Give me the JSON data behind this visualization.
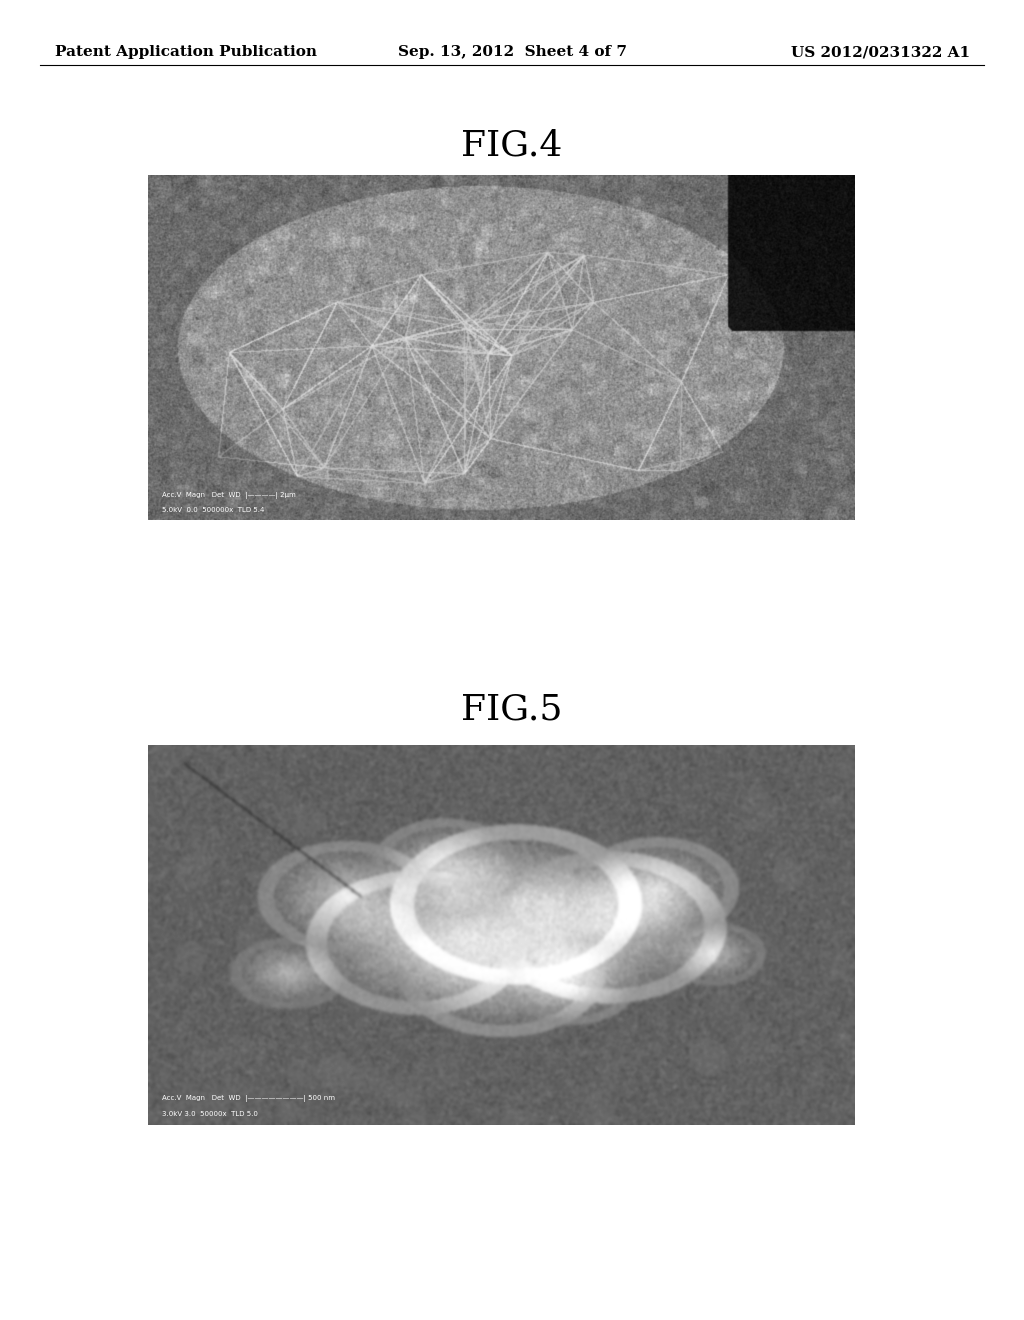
{
  "page_bg": "#ffffff",
  "header_left": "Patent Application Publication",
  "header_mid": "Sep. 13, 2012  Sheet 4 of 7",
  "header_right": "US 2012/0231322 A1",
  "fig4_label": "FIG.4",
  "fig5_label": "FIG.5",
  "label_fontsize": 26,
  "header_fontsize": 11
}
